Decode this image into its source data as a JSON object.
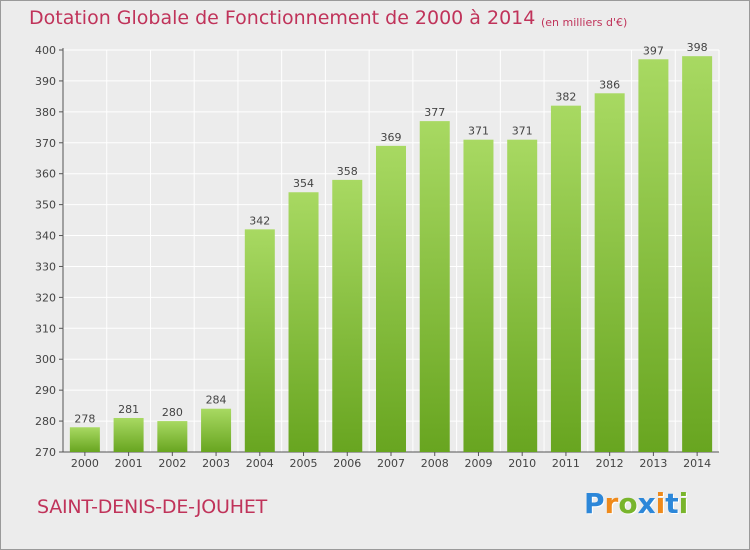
{
  "header": {
    "title": "Dotation Globale de Fonctionnement de 2000 à 2014",
    "unit": "(en milliers d'€)"
  },
  "footer": {
    "commune": "SAINT-DENIS-DE-JOUHET",
    "logo_letters": [
      "P",
      "r",
      "o",
      "x",
      "i",
      "t",
      "i"
    ]
  },
  "colors": {
    "title": "#c0335a",
    "bar_light": "#a4d65e",
    "bar_dark": "#6aa722",
    "background": "#ececec",
    "grid": "#ffffff"
  },
  "chart_data": {
    "type": "bar",
    "categories": [
      "2000",
      "2001",
      "2002",
      "2003",
      "2004",
      "2005",
      "2006",
      "2007",
      "2008",
      "2009",
      "2010",
      "2011",
      "2012",
      "2013",
      "2014"
    ],
    "values": [
      278,
      281,
      280,
      284,
      342,
      354,
      358,
      369,
      377,
      371,
      371,
      382,
      386,
      397,
      398
    ],
    "ylim": [
      270,
      400
    ],
    "yticks": [
      270,
      280,
      290,
      300,
      310,
      320,
      330,
      340,
      350,
      360,
      370,
      380,
      390,
      400
    ],
    "grid": true,
    "xlabel": "",
    "ylabel": ""
  }
}
